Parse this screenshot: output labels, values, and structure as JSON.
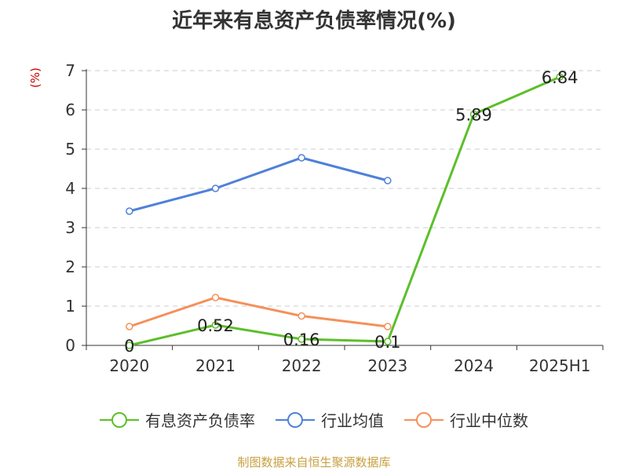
{
  "chart_data": {
    "type": "line",
    "title": "近年来有息资产负债率情况(%)",
    "ylabel": "(%)",
    "categories": [
      "2020",
      "2021",
      "2022",
      "2023",
      "2024",
      "2025H1"
    ],
    "ylim": [
      0,
      7
    ],
    "yticks": [
      "0",
      "1",
      "2",
      "3",
      "4",
      "5",
      "6",
      "7"
    ],
    "grid": true,
    "legend_position": "bottom",
    "series": [
      {
        "name": "有息资产负债率",
        "color": "#5cbf2a",
        "values": [
          0,
          0.52,
          0.16,
          0.1,
          5.89,
          6.84
        ],
        "labels": [
          "0",
          "0.52",
          "0.16",
          "0.1",
          "5.89",
          "6.84"
        ]
      },
      {
        "name": "行业均值",
        "color": "#4f81d9",
        "values": [
          3.42,
          4.0,
          4.78,
          4.2,
          null,
          null
        ]
      },
      {
        "name": "行业中位数",
        "color": "#f5905a",
        "values": [
          0.48,
          1.22,
          0.75,
          0.48,
          null,
          null
        ]
      }
    ],
    "source": "制图数据来自恒生聚源数据库"
  }
}
